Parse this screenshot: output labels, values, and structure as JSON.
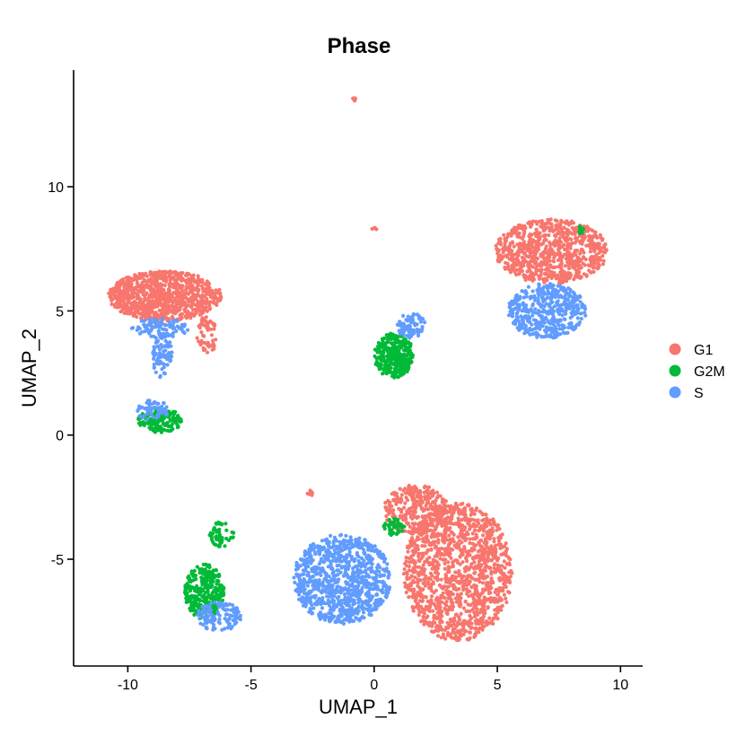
{
  "chart_data": {
    "type": "scatter",
    "title": "Phase",
    "xlabel": "UMAP_1",
    "ylabel": "UMAP_2",
    "xlim": [
      -12.2,
      10.9
    ],
    "ylim": [
      -9.3,
      14.7
    ],
    "x_ticks": [
      -10,
      -5,
      0,
      5,
      10
    ],
    "y_ticks": [
      -5,
      0,
      5,
      10
    ],
    "x_tick_labels": [
      "-10",
      "-5",
      "0",
      "5",
      "10"
    ],
    "y_tick_labels": [
      "-5",
      "0",
      "5",
      "10"
    ],
    "grid": false,
    "legend_position": "right",
    "series": [
      {
        "name": "G1",
        "color": "#F8766D",
        "clusters": [
          {
            "shape": "ellipse",
            "cx": -8.5,
            "cy": 5.6,
            "rx": 2.3,
            "ry": 1.0,
            "n": 900
          },
          {
            "shape": "ellipse",
            "cx": -6.8,
            "cy": 4.0,
            "rx": 0.4,
            "ry": 0.8,
            "n": 60
          },
          {
            "shape": "ellipse",
            "cx": 7.2,
            "cy": 7.4,
            "rx": 2.3,
            "ry": 1.3,
            "n": 800
          },
          {
            "shape": "ellipse",
            "cx": 3.4,
            "cy": -5.5,
            "rx": 2.2,
            "ry": 2.8,
            "n": 1300
          },
          {
            "shape": "ellipse",
            "cx": 1.7,
            "cy": -3.0,
            "rx": 1.3,
            "ry": 1.0,
            "n": 300
          },
          {
            "shape": "ellipse",
            "cx": -2.6,
            "cy": -2.3,
            "rx": 0.15,
            "ry": 0.15,
            "n": 8
          },
          {
            "shape": "ellipse",
            "cx": -0.8,
            "cy": 13.5,
            "rx": 0.08,
            "ry": 0.1,
            "n": 5
          },
          {
            "shape": "ellipse",
            "cx": 0.0,
            "cy": 8.3,
            "rx": 0.12,
            "ry": 0.05,
            "n": 4
          }
        ]
      },
      {
        "name": "G2M",
        "color": "#00BA38",
        "clusters": [
          {
            "shape": "ellipse",
            "cx": 0.8,
            "cy": 3.2,
            "rx": 0.8,
            "ry": 0.9,
            "n": 320
          },
          {
            "shape": "ellipse",
            "cx": -8.7,
            "cy": 0.6,
            "rx": 0.9,
            "ry": 0.5,
            "n": 150
          },
          {
            "shape": "ellipse",
            "cx": -6.9,
            "cy": -6.3,
            "rx": 0.8,
            "ry": 1.1,
            "n": 320
          },
          {
            "shape": "ellipse",
            "cx": -6.2,
            "cy": -4.0,
            "rx": 0.5,
            "ry": 0.5,
            "n": 50
          },
          {
            "shape": "ellipse",
            "cx": 0.8,
            "cy": -3.7,
            "rx": 0.45,
            "ry": 0.35,
            "n": 40
          },
          {
            "shape": "ellipse",
            "cx": 8.4,
            "cy": 8.3,
            "rx": 0.15,
            "ry": 0.2,
            "n": 12
          }
        ]
      },
      {
        "name": "S",
        "color": "#619CFF",
        "clusters": [
          {
            "shape": "ellipse",
            "cx": 7.0,
            "cy": 5.0,
            "rx": 1.6,
            "ry": 1.1,
            "n": 450
          },
          {
            "shape": "ellipse",
            "cx": -1.3,
            "cy": -5.8,
            "rx": 2.0,
            "ry": 1.8,
            "n": 900
          },
          {
            "shape": "ellipse",
            "cx": -8.6,
            "cy": 3.2,
            "rx": 0.4,
            "ry": 0.9,
            "n": 80
          },
          {
            "shape": "ellipse",
            "cx": -9.0,
            "cy": 1.0,
            "rx": 0.7,
            "ry": 0.4,
            "n": 60
          },
          {
            "shape": "ellipse",
            "cx": -8.7,
            "cy": 4.3,
            "rx": 1.2,
            "ry": 0.4,
            "n": 100
          },
          {
            "shape": "ellipse",
            "cx": 1.5,
            "cy": 4.4,
            "rx": 0.6,
            "ry": 0.5,
            "n": 80
          },
          {
            "shape": "ellipse",
            "cx": -6.3,
            "cy": -7.3,
            "rx": 0.9,
            "ry": 0.6,
            "n": 120
          }
        ]
      }
    ]
  }
}
